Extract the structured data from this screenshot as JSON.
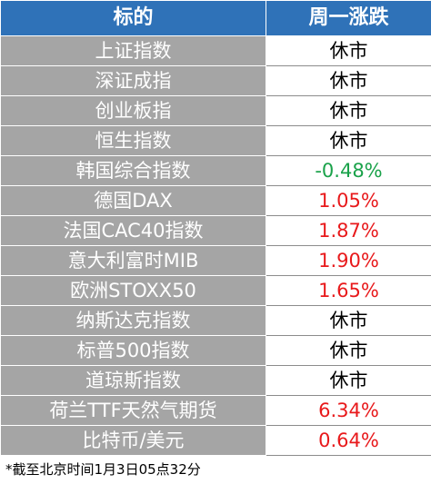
{
  "table": {
    "header": [
      "标的",
      "周一涨跌"
    ],
    "rows": [
      [
        "上证指数",
        "休市"
      ],
      [
        "深证成指",
        "休市"
      ],
      [
        "创业板指",
        "休市"
      ],
      [
        "恒生指数",
        "休市"
      ],
      [
        "韩国综合指数",
        "-0.48%"
      ],
      [
        "德国DAX",
        "1.05%"
      ],
      [
        "法国CAC40指数",
        "1.87%"
      ],
      [
        "意大利富时MIB",
        "1.90%"
      ],
      [
        "欧洲STOXX50",
        "1.65%"
      ],
      [
        "纳斯达克指数",
        "休市"
      ],
      [
        "标普500指数",
        "休市"
      ],
      [
        "道琼斯指数",
        "休市"
      ],
      [
        "荷兰TTF天然气期货",
        "6.34%"
      ],
      [
        "比特币/美元",
        "0.64%"
      ]
    ]
  },
  "footnote": "*截至北京时间1月3日05点32分"
}
